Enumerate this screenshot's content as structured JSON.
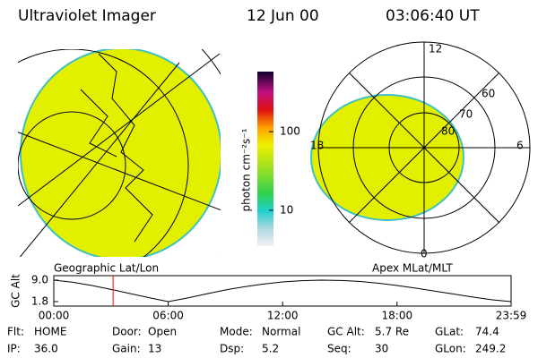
{
  "header": {
    "title": "Ultraviolet Imager",
    "date": "12 Jun 00",
    "time": "03:06:40 UT"
  },
  "left_panel": {
    "label": "Geographic Lat/Lon"
  },
  "right_panel": {
    "label": "Apex MLat/MLT",
    "mlt_labels": [
      "12",
      "18",
      "6",
      "0"
    ],
    "mlat_labels": [
      "60",
      "70",
      "80"
    ]
  },
  "colorbar": {
    "label": "photon cm⁻²s⁻¹",
    "log": true,
    "lim": [
      3.5,
      580
    ],
    "ticks": [
      10,
      100
    ]
  },
  "chart_data": {
    "type": "line",
    "ylabel": "GC Alt",
    "color": "#000000",
    "x": [
      0,
      1,
      2,
      3,
      4,
      5,
      6,
      7,
      8,
      9,
      10,
      11,
      12,
      13,
      14,
      15,
      16,
      17,
      18,
      19,
      20,
      21,
      22,
      23,
      23.98
    ],
    "values": [
      9.0,
      8.3,
      7.2,
      5.9,
      4.5,
      3.1,
      1.8,
      3.0,
      4.4,
      5.7,
      6.8,
      7.7,
      8.4,
      8.8,
      9.0,
      8.9,
      8.6,
      8.0,
      7.2,
      6.3,
      5.3,
      4.3,
      3.3,
      2.4,
      1.8
    ],
    "xlim": [
      0,
      23.98
    ],
    "ylim": [
      1.8,
      9.0
    ],
    "xticks": [
      {
        "value": 0,
        "label": "00:00"
      },
      {
        "value": 6,
        "label": "06:00"
      },
      {
        "value": 12,
        "label": "12:00"
      },
      {
        "value": 18,
        "label": "18:00"
      },
      {
        "value": 23.98,
        "label": "23:59"
      }
    ],
    "yticks": [
      {
        "value": 1.8,
        "label": "1.8"
      },
      {
        "value": 9.0,
        "label": "9.0"
      }
    ],
    "marker": {
      "value": 3.11,
      "color": "#ff0000"
    }
  },
  "info": [
    [
      [
        "Flt:",
        "HOME"
      ],
      [
        "Door:",
        "Open"
      ],
      [
        "Mode:",
        "Normal"
      ],
      [
        "GC Alt:",
        "5.7 Re"
      ],
      [
        "GLat:",
        "74.4"
      ]
    ],
    [
      [
        "IP:",
        "36.0"
      ],
      [
        "Gain:",
        "13"
      ],
      [
        "Dsp:",
        "5.2"
      ],
      [
        "Seq:",
        "30"
      ],
      [
        "GLon:",
        "249.2"
      ]
    ]
  ]
}
